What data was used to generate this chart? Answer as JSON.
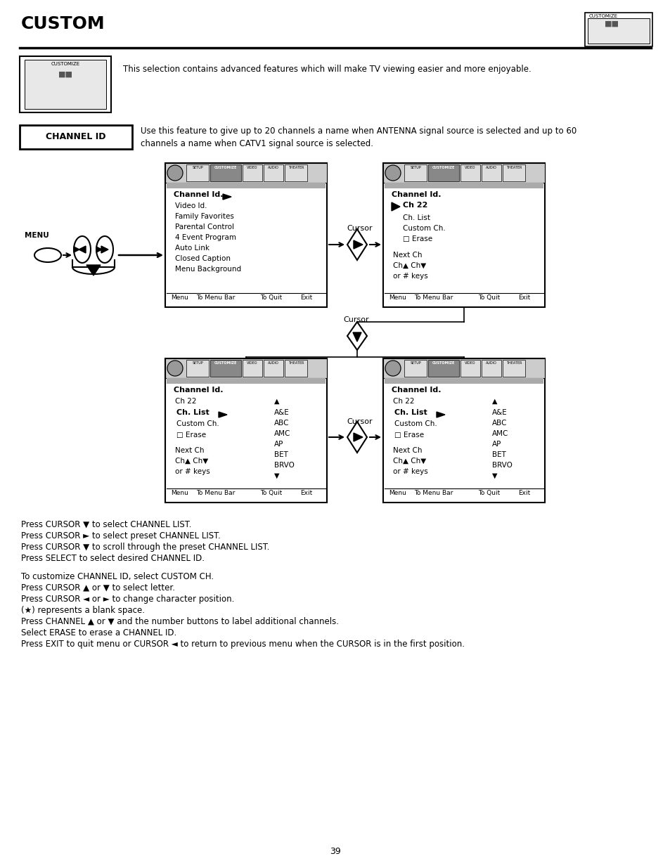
{
  "title": "CUSTOM",
  "page_number": "39",
  "bg_color": "#ffffff",
  "intro_text": "This selection contains advanced features which will make TV viewing easier and more enjoyable.",
  "channel_id_label": "CHANNEL ID",
  "channel_id_desc1": "Use this feature to give up to 20 channels a name when ANTENNA signal source is selected and up to 60",
  "channel_id_desc2": "channels a name when CATV1 signal source is selected.",
  "bottom_text": [
    "Press CURSOR ▼ to select CHANNEL LIST.",
    "Press CURSOR ► to select preset CHANNEL LIST.",
    "Press CURSOR ▼ to scroll through the preset CHANNEL LIST.",
    "Press SELECT to select desired CHANNEL ID.",
    "",
    "To customize CHANNEL ID, select CUSTOM CH.",
    "Press CURSOR ▲ or ▼ to select letter.",
    "Press CURSOR ◄ or ► to change character position.",
    "(★) represents a blank space.",
    "Press CHANNEL ▲ or ▼ and the number buttons to label additional channels.",
    "Select ERASE to erase a CHANNEL ID.",
    "Press EXIT to quit menu or CURSOR ◄ to return to previous menu when the CURSOR is in the first position."
  ]
}
